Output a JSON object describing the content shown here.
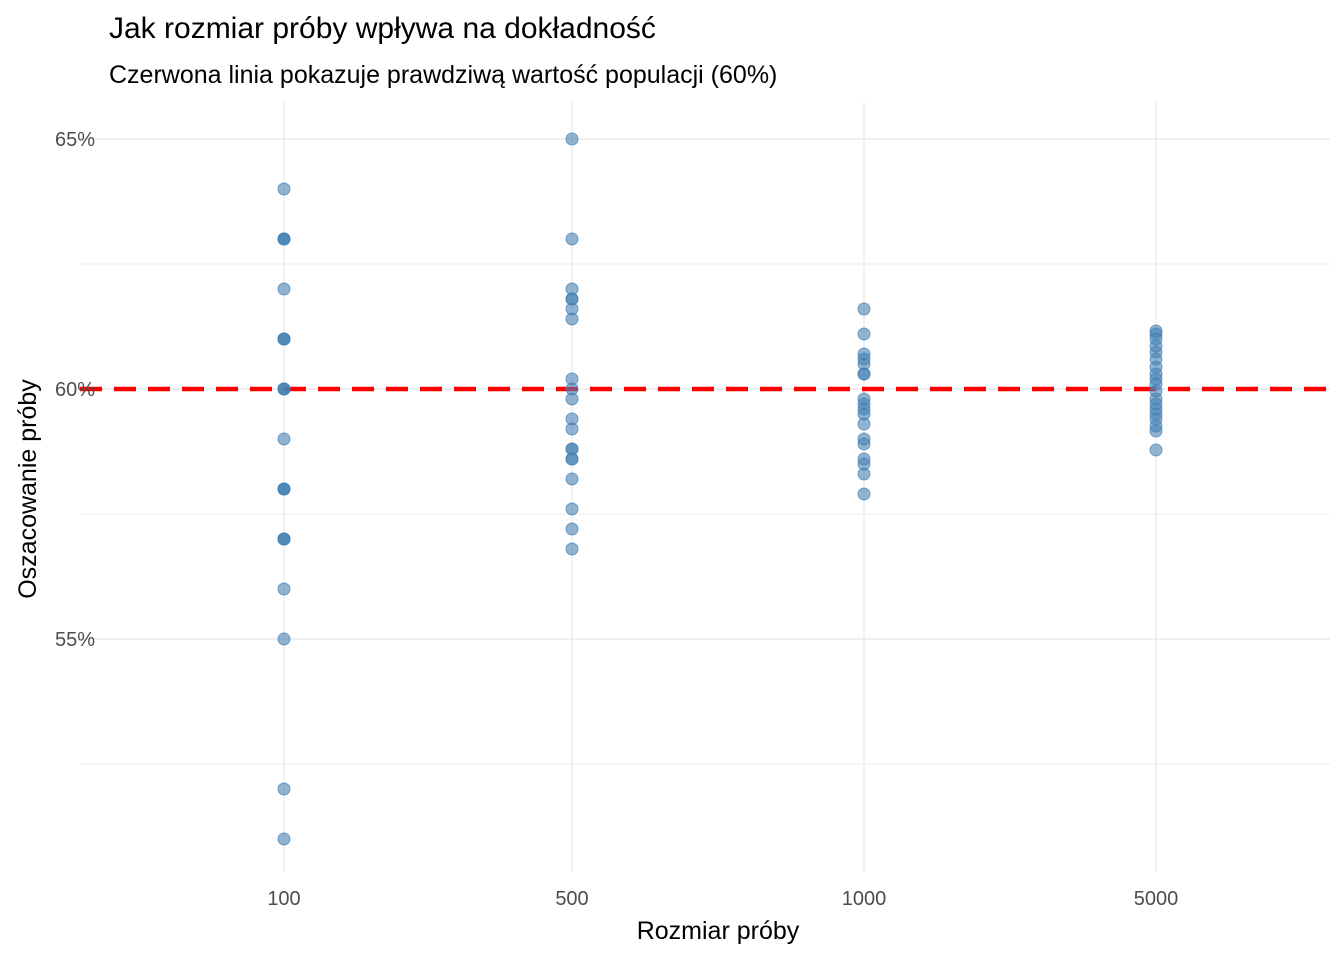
{
  "chart_data": {
    "type": "scatter",
    "title": "Jak rozmiar próby wpływa na dokładność",
    "subtitle": "Czerwona linia pokazuje prawdziwą wartość populacji (60%)",
    "xlabel": "Rozmiar próby",
    "ylabel": "Oszacowanie próby",
    "categories": [
      "100",
      "500",
      "1000",
      "5000"
    ],
    "y_unit": "%",
    "ylim": [
      50.7,
      65.7
    ],
    "yticks": [
      55,
      60,
      65
    ],
    "ytick_labels": [
      "55%",
      "60%",
      "65%"
    ],
    "reference_line": {
      "y": 60,
      "color": "#ff0000",
      "style": "dashed"
    },
    "grid": true,
    "point_color": "#4682b4",
    "points": [
      {
        "x": "100",
        "y": [
          64,
          63,
          63,
          63,
          62,
          61,
          61,
          61,
          60,
          60,
          60,
          59,
          58,
          58,
          58,
          57,
          57,
          57,
          56,
          55,
          52,
          51
        ]
      },
      {
        "x": "500",
        "y": [
          65,
          63,
          62,
          61.8,
          61.8,
          61.6,
          61.4,
          60.2,
          60,
          59.8,
          59.4,
          59.2,
          58.8,
          58.8,
          58.6,
          58.6,
          58.2,
          57.6,
          57.2,
          56.8
        ]
      },
      {
        "x": "1000",
        "y": [
          61.6,
          61.1,
          60.7,
          60.6,
          60.5,
          60.3,
          60.3,
          59.8,
          59.7,
          59.6,
          59.5,
          59.3,
          59.0,
          58.9,
          58.6,
          58.5,
          58.3,
          57.9
        ]
      },
      {
        "x": "5000",
        "y": [
          61.16,
          61.1,
          61.0,
          60.86,
          60.74,
          60.6,
          60.44,
          60.3,
          60.2,
          60.1,
          59.96,
          59.8,
          59.7,
          59.6,
          59.5,
          59.4,
          59.26,
          59.16,
          58.78
        ]
      }
    ]
  }
}
